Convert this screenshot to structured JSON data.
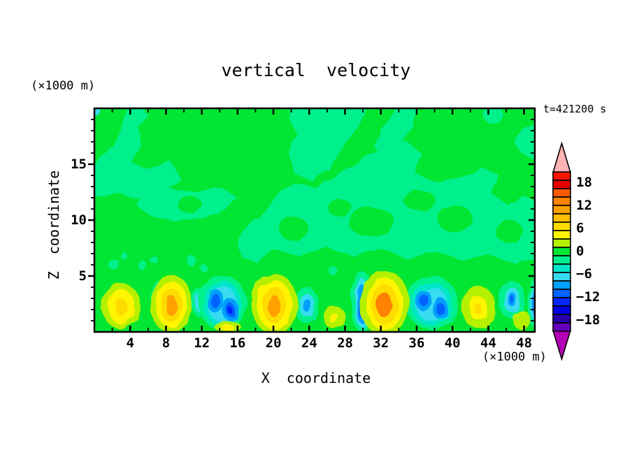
{
  "chart_data": {
    "type": "filled_contour_2d",
    "title": "vertical  velocity",
    "time_label": "t=421200 s",
    "x_label": "X  coordinate",
    "z_label": "Z  coordinate",
    "x_axis_unit": "(×1000 m)",
    "z_axis_unit": "(×1000 m)",
    "axes": {
      "xlim": [
        0,
        49.2
      ],
      "zlim": [
        0,
        20
      ],
      "x_major": [
        4,
        8,
        12,
        16,
        20,
        24,
        28,
        32,
        36,
        40,
        44,
        48
      ],
      "x_minor": [
        2,
        6,
        10,
        14,
        18,
        22,
        26,
        30,
        34,
        38,
        42,
        46
      ],
      "z_major": [
        5,
        10,
        15
      ],
      "z_minor": [
        1,
        2,
        3,
        4,
        6,
        7,
        8,
        9,
        11,
        12,
        13,
        14,
        16,
        17,
        18,
        19
      ]
    },
    "colorbar": {
      "labels": [
        "18",
        "12",
        "6",
        "0",
        "−6",
        "−12",
        "−18"
      ],
      "contour_interval": 2,
      "colors_top_to_bottom": [
        "#fa1400",
        "#e60000",
        "#ff5a00",
        "#ff8200",
        "#ffa000",
        "#ffbe00",
        "#ffdc00",
        "#fff500",
        "#b4f000",
        "#00e632",
        "#00f08c",
        "#00e6c8",
        "#37dcf0",
        "#00a0ff",
        "#0064ff",
        "#0028ff",
        "#0000e1",
        "#2800aa",
        "#6400b9"
      ],
      "top_arrow_color": "#ffb4b4",
      "bottom_arrow_color": "#b400b4"
    },
    "background_color": "#00e632",
    "palette": {
      "green": "#00e632",
      "mint": "#00f08c",
      "turq": "#00e6c8",
      "cyan": "#37dcf0",
      "sky": "#00a0ff",
      "dodger": "#0064ff",
      "blue": "#0028ff",
      "chart": "#b4f000",
      "yellow": "#fff500",
      "gold": "#ffdc00",
      "orange": "#ffa000",
      "orange2": "#ff8200"
    },
    "features": [
      {
        "s": "p",
        "c": "mint",
        "d": [
          [
            0,
            12.1
          ],
          [
            2.5,
            12.4
          ],
          [
            5,
            12.0
          ],
          [
            8,
            12.8
          ],
          [
            9.7,
            13.6
          ],
          [
            8.6,
            15.2
          ],
          [
            6,
            14.6
          ],
          [
            4.2,
            15.1
          ],
          [
            5.3,
            16.8
          ],
          [
            4.8,
            18.3
          ],
          [
            5.9,
            19.4
          ],
          [
            5.2,
            20.4
          ],
          [
            3.8,
            20.4
          ],
          [
            3.1,
            18.4
          ],
          [
            2.2,
            16.5
          ],
          [
            0.6,
            15.7
          ],
          [
            -0.4,
            14.8
          ]
        ]
      },
      {
        "s": "p",
        "c": "mint",
        "d": [
          [
            4.8,
            11.2
          ],
          [
            6.5,
            10.3
          ],
          [
            9,
            9.9
          ],
          [
            12,
            10.2
          ],
          [
            14.6,
            10.9
          ],
          [
            15.8,
            12.1
          ],
          [
            14.2,
            12.9
          ],
          [
            11.5,
            12.5
          ],
          [
            8.5,
            12.9
          ],
          [
            6.2,
            12.6
          ],
          [
            5.0,
            12.2
          ]
        ]
      },
      {
        "s": "p",
        "c": "mint",
        "d": [
          [
            21.8,
            20.4
          ],
          [
            30.5,
            20.4
          ],
          [
            29.4,
            18.2
          ],
          [
            27.6,
            16.4
          ],
          [
            26.2,
            14.6
          ],
          [
            24.3,
            13.5
          ],
          [
            22.4,
            14.1
          ],
          [
            21.7,
            15.9
          ],
          [
            22.6,
            17.8
          ],
          [
            21.8,
            19.0
          ]
        ]
      },
      {
        "s": "p",
        "c": "mint",
        "d": [
          [
            16.6,
            6.6
          ],
          [
            15.9,
            8.1
          ],
          [
            17.2,
            9.6
          ],
          [
            19.1,
            10.6
          ],
          [
            20.3,
            12.2
          ],
          [
            22.2,
            13.3
          ],
          [
            24.8,
            12.9
          ],
          [
            26.8,
            13.9
          ],
          [
            29.6,
            15.3
          ],
          [
            32.6,
            16.7
          ],
          [
            34.8,
            17.1
          ],
          [
            36.6,
            15.9
          ],
          [
            35.8,
            14.3
          ],
          [
            38.1,
            13.4
          ],
          [
            41.2,
            13.8
          ],
          [
            43.3,
            14.7
          ],
          [
            45.2,
            14.0
          ],
          [
            44.3,
            12.4
          ],
          [
            46.2,
            11.4
          ],
          [
            48.2,
            12.1
          ],
          [
            49.6,
            11.6
          ],
          [
            49.6,
            6.6
          ],
          [
            47.0,
            6.1
          ],
          [
            44.0,
            7.0
          ],
          [
            41.0,
            6.4
          ],
          [
            38.0,
            7.3
          ],
          [
            35.0,
            6.5
          ],
          [
            32.0,
            7.5
          ],
          [
            29.0,
            6.7
          ],
          [
            26.0,
            7.6
          ],
          [
            23.0,
            6.8
          ],
          [
            20.0,
            7.4
          ],
          [
            18.2,
            6.2
          ]
        ]
      },
      {
        "s": "p",
        "c": "mint",
        "d": [
          [
            49.6,
            18.6
          ],
          [
            47.6,
            18.2
          ],
          [
            46.9,
            17.0
          ],
          [
            47.8,
            15.9
          ],
          [
            49.6,
            15.3
          ]
        ]
      },
      {
        "s": "e",
        "c": "mint",
        "d": [
          44.6,
          19.4,
          1.1,
          0.8
        ]
      },
      {
        "s": "p",
        "c": "mint",
        "d": [
          [
            33.8,
            20.4
          ],
          [
            36.2,
            20.4
          ],
          [
            35.6,
            18.4
          ],
          [
            34.2,
            16.9
          ],
          [
            32.4,
            15.8
          ],
          [
            31.2,
            16.5
          ],
          [
            32.0,
            18.0
          ],
          [
            32.9,
            19.1
          ]
        ]
      },
      {
        "s": "e",
        "c": "green",
        "d": [
          10.6,
          11.4,
          1.4,
          0.7
        ]
      },
      {
        "s": "e",
        "c": "green",
        "d": [
          22.3,
          9.2,
          1.6,
          1.1
        ]
      },
      {
        "s": "e",
        "c": "green",
        "d": [
          31.0,
          9.8,
          2.6,
          1.3
        ]
      },
      {
        "s": "e",
        "c": "green",
        "d": [
          40.3,
          10.1,
          2.0,
          1.2
        ]
      },
      {
        "s": "e",
        "c": "green",
        "d": [
          46.3,
          9.0,
          1.5,
          1.0
        ]
      },
      {
        "s": "e",
        "c": "green",
        "d": [
          36.3,
          11.8,
          1.8,
          0.9
        ]
      },
      {
        "s": "e",
        "c": "green",
        "d": [
          27.4,
          11.1,
          1.3,
          0.8
        ]
      },
      {
        "s": "e",
        "c": "mint",
        "d": [
          2.1,
          6.1,
          0.55,
          0.5
        ]
      },
      {
        "s": "e",
        "c": "mint",
        "d": [
          3.3,
          6.8,
          0.4,
          0.35
        ]
      },
      {
        "s": "e",
        "c": "mint",
        "d": [
          5.4,
          5.9,
          0.5,
          0.45
        ]
      },
      {
        "s": "e",
        "c": "mint",
        "d": [
          6.6,
          6.5,
          0.4,
          0.35
        ]
      },
      {
        "s": "e",
        "c": "mint",
        "d": [
          10.9,
          6.3,
          0.5,
          0.45
        ]
      },
      {
        "s": "e",
        "c": "mint",
        "d": [
          12.2,
          5.7,
          0.4,
          0.35
        ]
      },
      {
        "s": "e",
        "c": "mint",
        "d": [
          26.6,
          5.5,
          0.5,
          0.4
        ]
      },
      {
        "s": "e",
        "c": "cyan",
        "d": [
          0.35,
          19.65,
          0.4,
          0.4
        ]
      },
      {
        "s": "e",
        "c": "mint",
        "d": [
          7.0,
          2.9,
          0.75,
          1.7
        ]
      },
      {
        "s": "e",
        "c": "cyan",
        "d": [
          7.0,
          2.9,
          0.42,
          1.15
        ]
      },
      {
        "s": "e",
        "c": "sky",
        "d": [
          7.0,
          2.9,
          0.22,
          0.6
        ]
      },
      {
        "s": "e",
        "c": "mint",
        "d": [
          11.7,
          2.6,
          0.8,
          1.25
        ]
      },
      {
        "s": "e",
        "c": "cyan",
        "d": [
          11.7,
          2.6,
          0.45,
          0.8
        ]
      },
      {
        "s": "e",
        "c": "mint",
        "d": [
          14.3,
          2.6,
          2.7,
          2.45
        ]
      },
      {
        "s": "e",
        "c": "turq",
        "d": [
          14.3,
          2.55,
          2.15,
          2.0
        ]
      },
      {
        "s": "e",
        "c": "cyan",
        "d": [
          14.3,
          2.5,
          1.65,
          1.6
        ]
      },
      {
        "s": "e",
        "c": "sky",
        "d": [
          13.5,
          2.8,
          0.95,
          1.05
        ]
      },
      {
        "s": "e",
        "c": "dodger",
        "d": [
          13.5,
          2.8,
          0.55,
          0.65
        ]
      },
      {
        "s": "e",
        "c": "sky",
        "d": [
          15.2,
          2.0,
          0.9,
          1.0
        ]
      },
      {
        "s": "e",
        "c": "dodger",
        "d": [
          15.2,
          1.95,
          0.5,
          0.6
        ]
      },
      {
        "s": "e",
        "c": "blue",
        "d": [
          15.2,
          1.9,
          0.25,
          0.3
        ]
      },
      {
        "s": "e",
        "c": "mint",
        "d": [
          23.7,
          2.4,
          1.35,
          1.6
        ]
      },
      {
        "s": "e",
        "c": "cyan",
        "d": [
          23.7,
          2.4,
          0.85,
          1.05
        ]
      },
      {
        "s": "e",
        "c": "sky",
        "d": [
          23.7,
          2.4,
          0.45,
          0.6
        ]
      },
      {
        "s": "e",
        "c": "mint",
        "d": [
          29.9,
          2.7,
          1.25,
          2.7
        ]
      },
      {
        "s": "e",
        "c": "cyan",
        "d": [
          29.9,
          2.6,
          0.8,
          2.2
        ]
      },
      {
        "s": "e",
        "c": "sky",
        "d": [
          29.9,
          2.5,
          0.55,
          1.75
        ]
      },
      {
        "s": "e",
        "c": "dodger",
        "d": [
          29.9,
          2.4,
          0.33,
          1.25
        ]
      },
      {
        "s": "e",
        "c": "blue",
        "d": [
          29.9,
          2.3,
          0.18,
          0.7
        ]
      },
      {
        "s": "e",
        "c": "mint",
        "d": [
          37.7,
          2.6,
          2.9,
          2.4
        ]
      },
      {
        "s": "e",
        "c": "turq",
        "d": [
          37.7,
          2.5,
          2.3,
          1.95
        ]
      },
      {
        "s": "e",
        "c": "cyan",
        "d": [
          37.7,
          2.45,
          1.75,
          1.55
        ]
      },
      {
        "s": "e",
        "c": "sky",
        "d": [
          36.8,
          2.8,
          0.85,
          0.95
        ]
      },
      {
        "s": "e",
        "c": "dodger",
        "d": [
          36.8,
          2.85,
          0.5,
          0.55
        ]
      },
      {
        "s": "e",
        "c": "sky",
        "d": [
          38.7,
          2.05,
          0.85,
          0.95
        ]
      },
      {
        "s": "e",
        "c": "dodger",
        "d": [
          38.7,
          2.0,
          0.5,
          0.55
        ]
      },
      {
        "s": "e",
        "c": "mint",
        "d": [
          46.6,
          2.9,
          1.5,
          1.7
        ]
      },
      {
        "s": "e",
        "c": "cyan",
        "d": [
          46.6,
          2.9,
          0.9,
          1.15
        ]
      },
      {
        "s": "e",
        "c": "sky",
        "d": [
          46.6,
          2.95,
          0.5,
          0.65
        ]
      },
      {
        "s": "e",
        "c": "dodger",
        "d": [
          46.6,
          2.95,
          0.25,
          0.35
        ]
      },
      {
        "s": "e",
        "c": "mint",
        "d": [
          49.3,
          2.6,
          0.9,
          2.3
        ]
      },
      {
        "s": "e",
        "c": "cyan",
        "d": [
          49.3,
          2.6,
          0.55,
          1.7
        ]
      },
      {
        "s": "e",
        "c": "sky",
        "d": [
          49.3,
          2.5,
          0.3,
          1.1
        ]
      },
      {
        "s": "e",
        "c": "chart",
        "d": [
          3.0,
          2.3,
          2.2,
          2.0
        ]
      },
      {
        "s": "e",
        "c": "yellow",
        "d": [
          3.0,
          2.25,
          1.45,
          1.55
        ]
      },
      {
        "s": "e",
        "c": "gold",
        "d": [
          3.0,
          2.2,
          0.6,
          0.8
        ]
      },
      {
        "s": "e",
        "c": "chart",
        "d": [
          8.6,
          2.5,
          2.35,
          2.6
        ]
      },
      {
        "s": "e",
        "c": "yellow",
        "d": [
          8.6,
          2.45,
          1.75,
          2.1
        ]
      },
      {
        "s": "e",
        "c": "gold",
        "d": [
          8.6,
          2.4,
          1.15,
          1.55
        ]
      },
      {
        "s": "e",
        "c": "orange",
        "d": [
          8.6,
          2.35,
          0.6,
          0.95
        ]
      },
      {
        "s": "e",
        "c": "chart",
        "d": [
          20.1,
          2.5,
          2.6,
          2.7
        ]
      },
      {
        "s": "e",
        "c": "yellow",
        "d": [
          20.1,
          2.45,
          1.95,
          2.2
        ]
      },
      {
        "s": "e",
        "c": "gold",
        "d": [
          20.1,
          2.4,
          1.3,
          1.65
        ]
      },
      {
        "s": "e",
        "c": "orange",
        "d": [
          20.1,
          2.3,
          0.7,
          1.0
        ]
      },
      {
        "s": "e",
        "c": "chart",
        "d": [
          32.4,
          2.6,
          2.8,
          2.9
        ]
      },
      {
        "s": "e",
        "c": "yellow",
        "d": [
          32.4,
          2.5,
          2.05,
          2.35
        ]
      },
      {
        "s": "e",
        "c": "gold",
        "d": [
          32.4,
          2.45,
          1.45,
          1.8
        ]
      },
      {
        "s": "e",
        "c": "orange2",
        "d": [
          32.4,
          2.4,
          0.8,
          1.15
        ]
      },
      {
        "s": "e",
        "c": "chart",
        "d": [
          42.9,
          2.2,
          1.9,
          1.9
        ]
      },
      {
        "s": "e",
        "c": "yellow",
        "d": [
          42.9,
          2.1,
          0.95,
          1.1
        ]
      },
      {
        "s": "e",
        "c": "gold",
        "d": [
          42.9,
          2.0,
          0.35,
          0.5
        ]
      },
      {
        "s": "e",
        "c": "chart",
        "d": [
          26.8,
          1.3,
          1.25,
          1.0
        ]
      },
      {
        "s": "e",
        "c": "yellow",
        "d": [
          26.8,
          1.2,
          0.5,
          0.45
        ]
      },
      {
        "s": "e",
        "c": "chart",
        "d": [
          47.7,
          1.1,
          1.0,
          0.85
        ]
      },
      {
        "s": "e",
        "c": "chart",
        "d": [
          14.9,
          0.45,
          1.5,
          0.5
        ]
      },
      {
        "s": "e",
        "c": "yellow",
        "d": [
          14.9,
          0.35,
          0.7,
          0.3
        ]
      }
    ]
  }
}
